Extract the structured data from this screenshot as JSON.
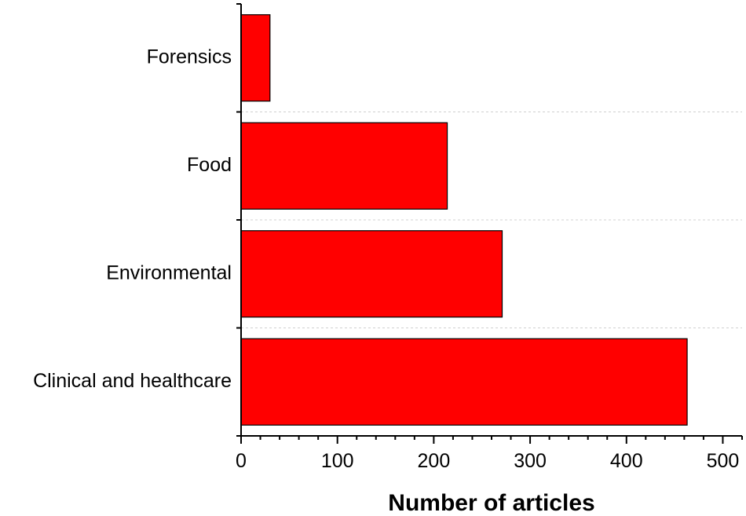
{
  "chart_data": {
    "type": "bar",
    "orientation": "horizontal",
    "categories": [
      "Clinical and healthcare",
      "Environmental",
      "Food",
      "Forensics"
    ],
    "values": [
      463,
      271,
      214,
      30
    ],
    "title": "",
    "xlabel": "Number of articles",
    "ylabel": "",
    "xlim": [
      0,
      520
    ],
    "xticks": [
      "0",
      "100",
      "200",
      "300",
      "400",
      "500"
    ],
    "bar_color": "#ff0000",
    "grid": "dashed horizontal separators between categories",
    "legend": "none"
  }
}
